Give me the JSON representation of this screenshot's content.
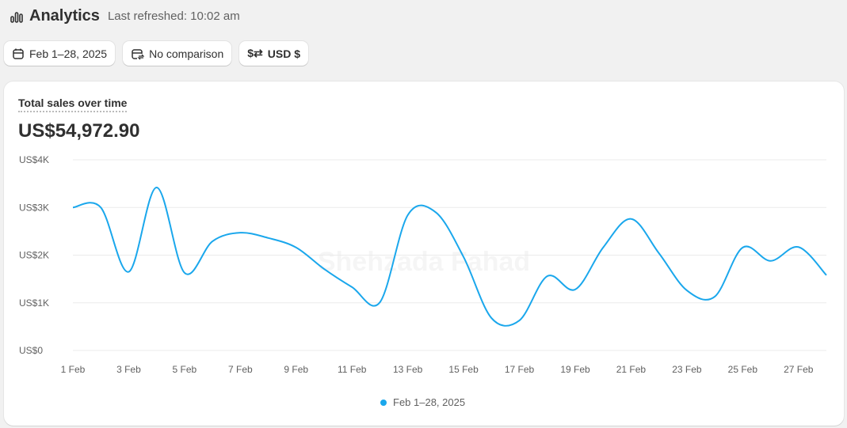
{
  "header": {
    "title": "Analytics",
    "refreshed": "Last refreshed: 10:02 am",
    "icon": "bar-chart-icon"
  },
  "toolbar": {
    "date_range": "Feb 1–28, 2025",
    "comparison": "No comparison",
    "currency": "USD $"
  },
  "card": {
    "title": "Total sales over time",
    "total": "US$54,972.90"
  },
  "watermark": "Shehzada Fahad",
  "chart_data": {
    "type": "line",
    "title": "Total sales over time",
    "x": [
      "1 Feb",
      "2 Feb",
      "3 Feb",
      "4 Feb",
      "5 Feb",
      "6 Feb",
      "7 Feb",
      "8 Feb",
      "9 Feb",
      "10 Feb",
      "11 Feb",
      "12 Feb",
      "13 Feb",
      "14 Feb",
      "15 Feb",
      "16 Feb",
      "17 Feb",
      "18 Feb",
      "19 Feb",
      "20 Feb",
      "21 Feb",
      "22 Feb",
      "23 Feb",
      "24 Feb",
      "25 Feb",
      "26 Feb",
      "27 Feb",
      "28 Feb"
    ],
    "x_tick_labels": [
      "1 Feb",
      "3 Feb",
      "5 Feb",
      "7 Feb",
      "9 Feb",
      "11 Feb",
      "13 Feb",
      "15 Feb",
      "17 Feb",
      "19 Feb",
      "21 Feb",
      "23 Feb",
      "25 Feb",
      "27 Feb"
    ],
    "series": [
      {
        "name": "Feb 1–28, 2025",
        "color": "#1aa7ec",
        "values": [
          3000,
          3000,
          1650,
          3420,
          1630,
          2290,
          2470,
          2360,
          2160,
          1710,
          1330,
          1010,
          2840,
          2900,
          1960,
          680,
          630,
          1560,
          1280,
          2160,
          2760,
          2040,
          1260,
          1130,
          2160,
          1880,
          2170,
          1580
        ]
      }
    ],
    "y_tick_labels": [
      "US$0",
      "US$1K",
      "US$2K",
      "US$3K",
      "US$4K"
    ],
    "ylim": [
      0,
      4000
    ],
    "grid": true,
    "legend": "bottom"
  }
}
